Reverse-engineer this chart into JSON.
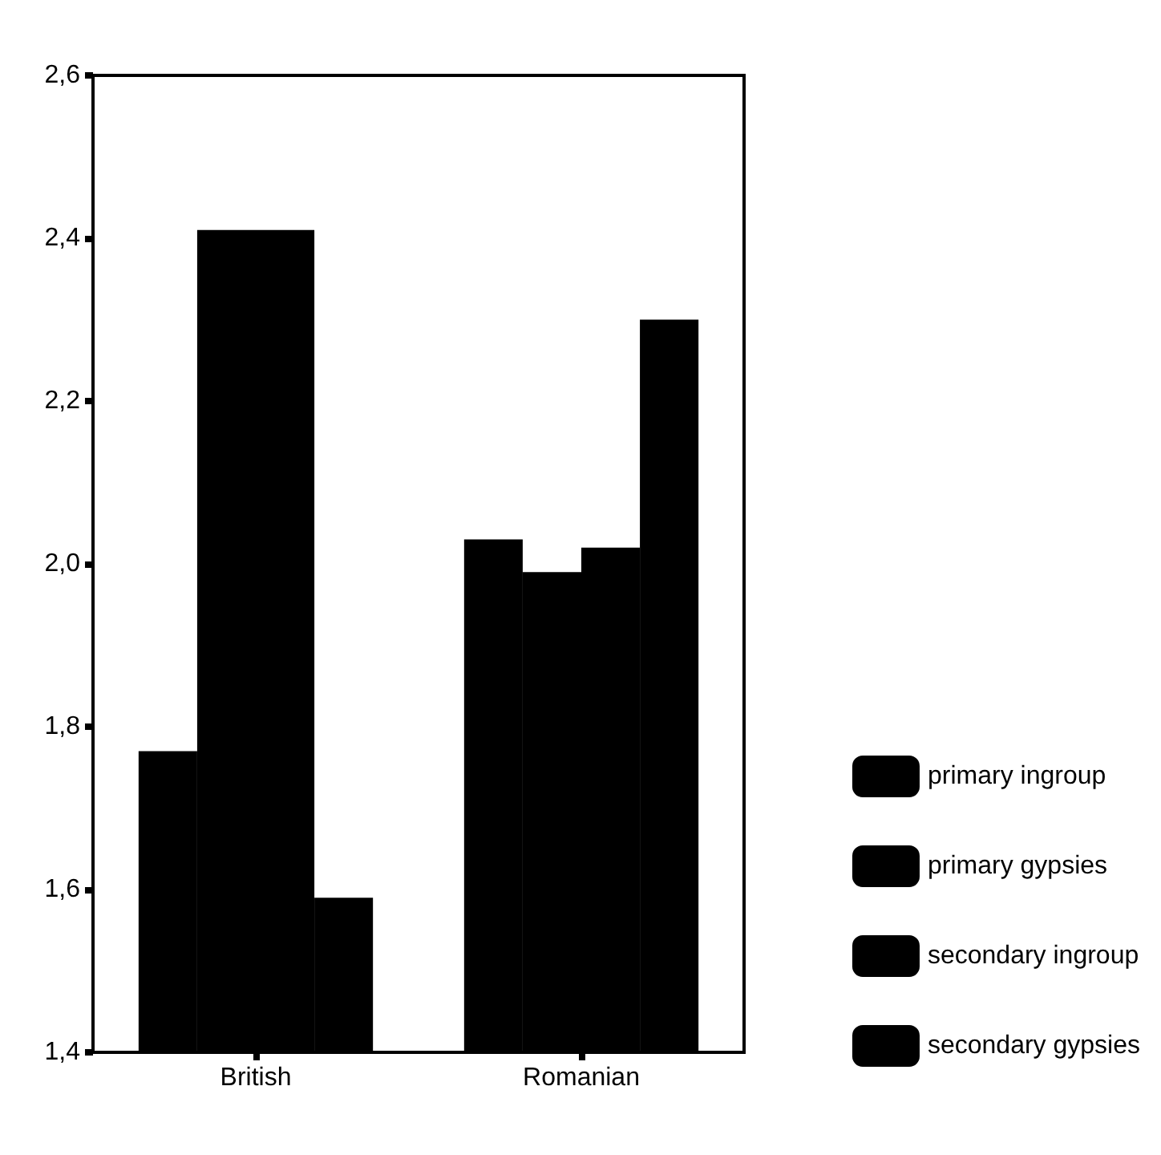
{
  "chart_data": {
    "type": "bar",
    "categories": [
      "British",
      "Romanian"
    ],
    "series": [
      {
        "name": "primary ingroup",
        "color": "#000000",
        "values": [
          1.77,
          2.03
        ]
      },
      {
        "name": "primary gypsies",
        "color": "#000000",
        "values": [
          2.41,
          1.99
        ]
      },
      {
        "name": "secondary ingroup",
        "color": "#000000",
        "values": [
          2.41,
          2.02
        ]
      },
      {
        "name": "secondary gypsies",
        "color": "#000000",
        "values": [
          1.59,
          2.3
        ]
      }
    ],
    "ylim": [
      1.4,
      2.6
    ],
    "yticks": [
      {
        "value": 1.4,
        "label": "1,4"
      },
      {
        "value": 1.6,
        "label": "1,6"
      },
      {
        "value": 1.8,
        "label": "1,8"
      },
      {
        "value": 2.0,
        "label": "2,0"
      },
      {
        "value": 2.2,
        "label": "2,2"
      },
      {
        "value": 2.4,
        "label": "2,4"
      },
      {
        "value": 2.6,
        "label": "2,6"
      }
    ],
    "grid": false,
    "legend": "bottom right"
  }
}
